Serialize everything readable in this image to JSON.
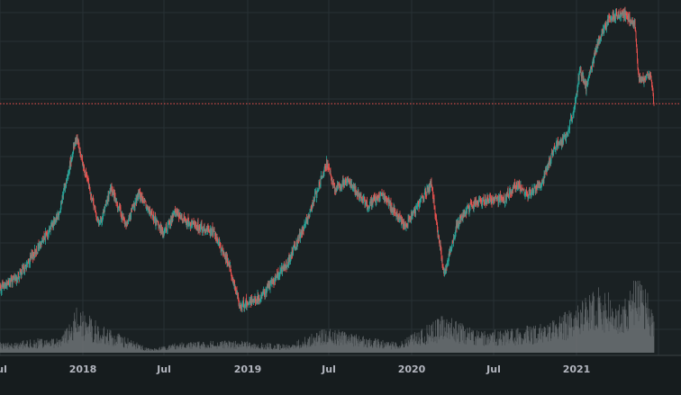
{
  "chart_data": {
    "type": "candlestick",
    "title": "",
    "xlabel": "",
    "ylabel": "",
    "grid": true,
    "x_tick_labels": [
      "Jul",
      "2018",
      "Jul",
      "2019",
      "Jul",
      "2020",
      "Jul",
      "2021"
    ],
    "last_price_line": true,
    "price_keypoints": [
      [
        "2017-07-01",
        6
      ],
      [
        "2017-08-15",
        7
      ],
      [
        "2017-10-01",
        10
      ],
      [
        "2017-11-10",
        14
      ],
      [
        "2017-12-17",
        32
      ],
      [
        "2017-12-31",
        24
      ],
      [
        "2018-02-06",
        12
      ],
      [
        "2018-03-05",
        18
      ],
      [
        "2018-04-06",
        12
      ],
      [
        "2018-05-05",
        17
      ],
      [
        "2018-06-29",
        11
      ],
      [
        "2018-07-25",
        14
      ],
      [
        "2018-09-01",
        12
      ],
      [
        "2018-10-15",
        11.5
      ],
      [
        "2018-11-20",
        8
      ],
      [
        "2018-12-15",
        5
      ],
      [
        "2019-02-01",
        5.5
      ],
      [
        "2019-04-01",
        8
      ],
      [
        "2019-05-15",
        13
      ],
      [
        "2019-06-26",
        24
      ],
      [
        "2019-07-15",
        18
      ],
      [
        "2019-08-10",
        20
      ],
      [
        "2019-09-25",
        15
      ],
      [
        "2019-10-26",
        17
      ],
      [
        "2019-12-18",
        12
      ],
      [
        "2020-02-13",
        19
      ],
      [
        "2020-03-13",
        7
      ],
      [
        "2020-04-10",
        12
      ],
      [
        "2020-05-10",
        15
      ],
      [
        "2020-06-15",
        16
      ],
      [
        "2020-07-25",
        16
      ],
      [
        "2020-08-20",
        19
      ],
      [
        "2020-09-15",
        17
      ],
      [
        "2020-10-15",
        19
      ],
      [
        "2020-11-15",
        29
      ],
      [
        "2020-12-10",
        32
      ],
      [
        "2020-12-31",
        48
      ],
      [
        "2021-01-08",
        68
      ],
      [
        "2021-01-22",
        54
      ],
      [
        "2021-02-21",
        95
      ],
      [
        "2021-03-14",
        118
      ],
      [
        "2021-04-14",
        124
      ],
      [
        "2021-05-10",
        112
      ],
      [
        "2021-05-19",
        61
      ],
      [
        "2021-06-01",
        60
      ],
      [
        "2021-06-15",
        64
      ],
      [
        "2021-06-22",
        46
      ]
    ],
    "volume_profile": [
      [
        "2017-07-01",
        0.12
      ],
      [
        "2017-11-15",
        0.2
      ],
      [
        "2017-12-20",
        0.55
      ],
      [
        "2018-02-05",
        0.35
      ],
      [
        "2018-04-20",
        0.15
      ],
      [
        "2018-06-01",
        0.05
      ],
      [
        "2018-08-01",
        0.12
      ],
      [
        "2018-11-20",
        0.15
      ],
      [
        "2019-04-01",
        0.1
      ],
      [
        "2019-06-26",
        0.3
      ],
      [
        "2019-12-01",
        0.12
      ],
      [
        "2020-03-13",
        0.45
      ],
      [
        "2020-06-01",
        0.25
      ],
      [
        "2020-11-01",
        0.35
      ],
      [
        "2021-01-10",
        0.6
      ],
      [
        "2021-02-25",
        0.8
      ],
      [
        "2021-04-15",
        0.6
      ],
      [
        "2021-05-19",
        1.0
      ],
      [
        "2021-06-22",
        0.5
      ]
    ],
    "colors": {
      "background": "#1a2123",
      "grid": "#283134",
      "up": "#26a69a",
      "down": "#ef5350",
      "volume": "#707477",
      "axis_text": "#b2b5be",
      "price_line": "#ef5350"
    }
  }
}
